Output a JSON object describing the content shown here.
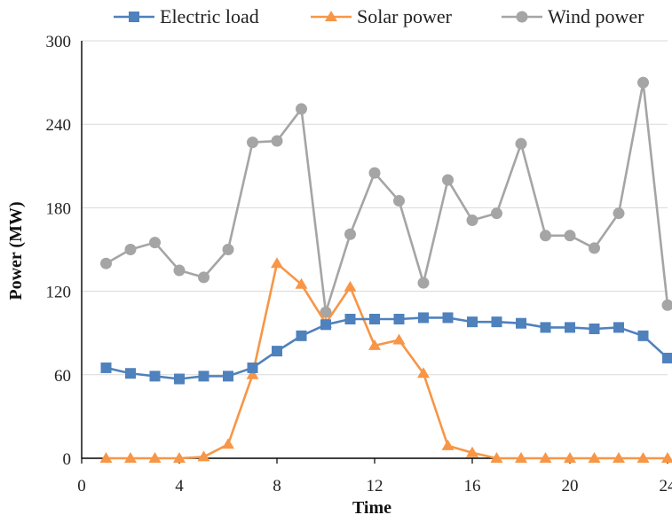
{
  "chart_data": {
    "type": "line",
    "title": "",
    "xlabel": "Time",
    "ylabel": "Power (MW)",
    "xlim": [
      0,
      24
    ],
    "ylim": [
      0,
      300
    ],
    "xticks": [
      0,
      4,
      8,
      12,
      16,
      20,
      24
    ],
    "yticks": [
      0,
      60,
      120,
      180,
      240,
      300
    ],
    "grid": "horizontal",
    "legend_position": "top",
    "series": [
      {
        "name": "Electric load",
        "color": "#4f81bd",
        "marker": "square",
        "x": [
          1,
          2,
          3,
          4,
          5,
          6,
          7,
          8,
          9,
          10,
          11,
          12,
          13,
          14,
          15,
          16,
          17,
          18,
          19,
          20,
          21,
          22,
          23,
          24
        ],
        "values": [
          65,
          61,
          59,
          57,
          59,
          59,
          65,
          77,
          88,
          96,
          100,
          100,
          100,
          101,
          101,
          98,
          98,
          97,
          94,
          94,
          93,
          94,
          88,
          72
        ]
      },
      {
        "name": "Solar power",
        "color": "#f79646",
        "marker": "triangle",
        "x": [
          1,
          2,
          3,
          4,
          5,
          6,
          7,
          8,
          9,
          10,
          11,
          12,
          13,
          14,
          15,
          16,
          17,
          18,
          19,
          20,
          21,
          22,
          23,
          24
        ],
        "values": [
          0,
          0,
          0,
          0,
          1,
          10,
          60,
          140,
          125,
          97,
          123,
          81,
          85,
          61,
          9,
          4,
          0,
          0,
          0,
          0,
          0,
          0,
          0,
          0
        ]
      },
      {
        "name": "Wind power",
        "color": "#a5a5a5",
        "marker": "circle",
        "x": [
          1,
          2,
          3,
          4,
          5,
          6,
          7,
          8,
          9,
          10,
          11,
          12,
          13,
          14,
          15,
          16,
          17,
          18,
          19,
          20,
          21,
          22,
          23,
          24
        ],
        "values": [
          140,
          150,
          155,
          135,
          130,
          150,
          227,
          228,
          251,
          105,
          161,
          205,
          185,
          126,
          200,
          171,
          176,
          226,
          160,
          160,
          151,
          176,
          270,
          110
        ]
      }
    ]
  }
}
